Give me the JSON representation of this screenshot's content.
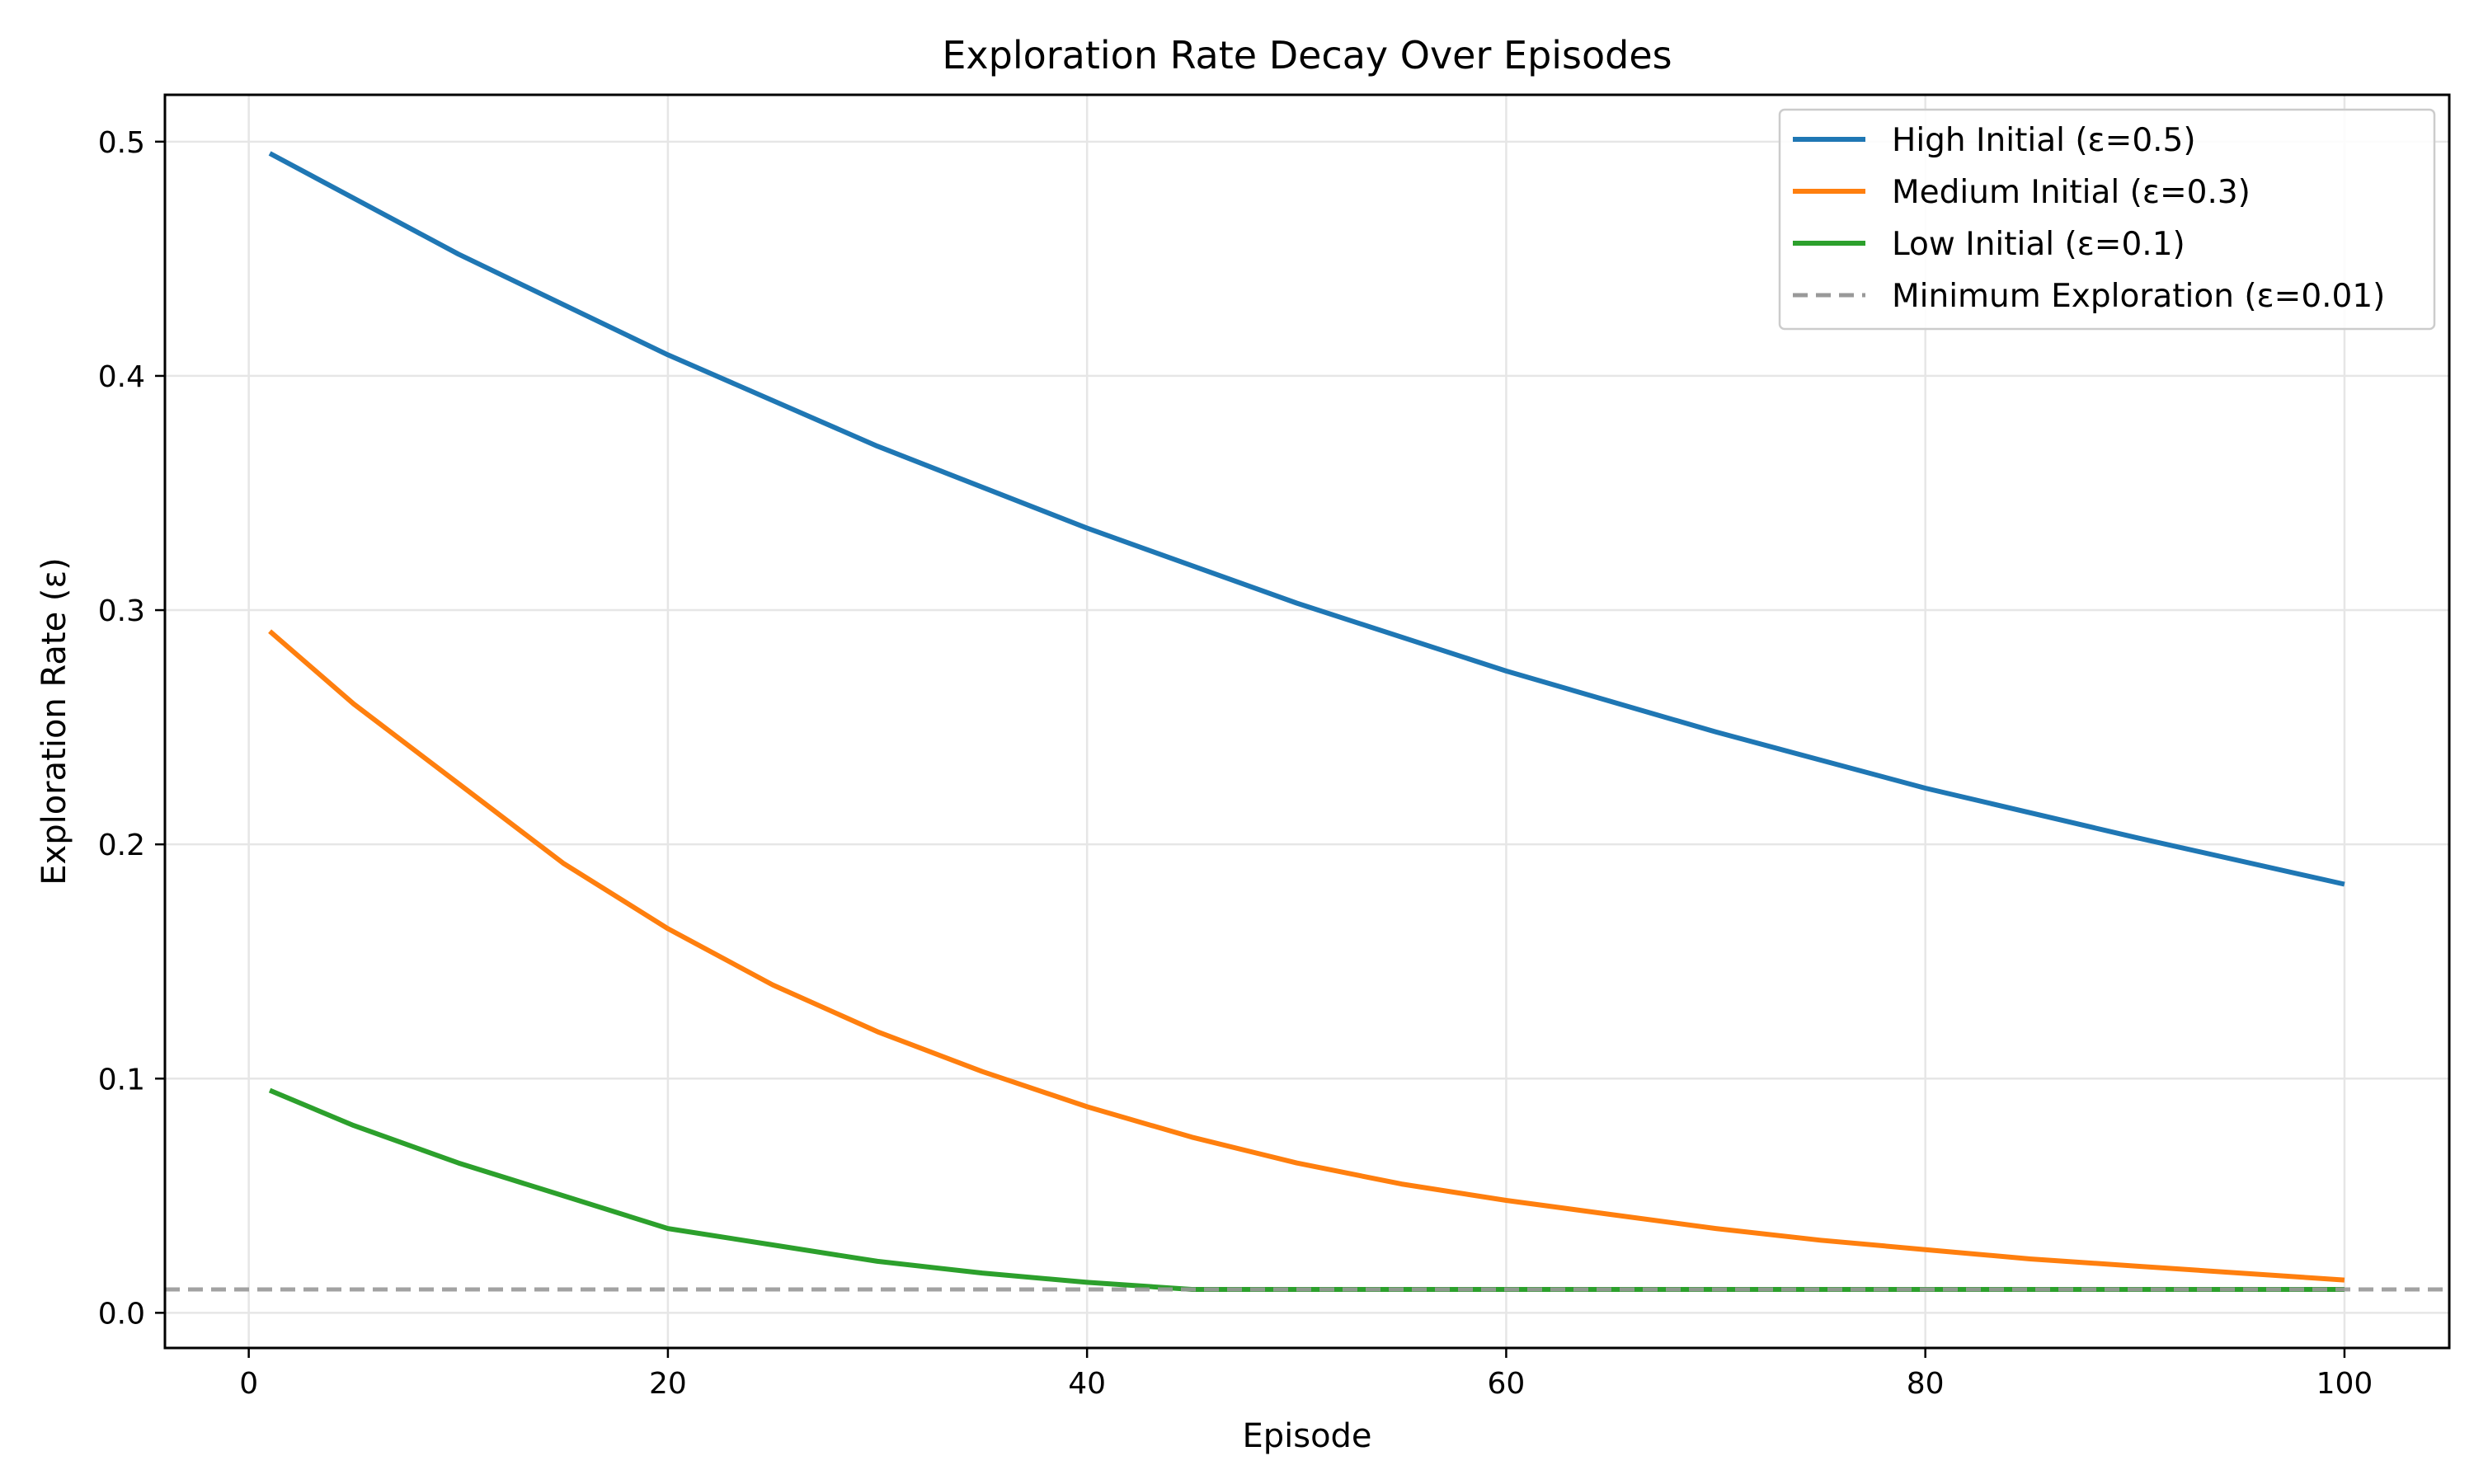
{
  "chart_data": {
    "type": "line",
    "title": "Exploration Rate Decay Over Episodes",
    "xlabel": "Episode",
    "ylabel": "Exploration Rate (ε)",
    "xlim": [
      -4,
      105
    ],
    "ylim": [
      -0.015,
      0.52
    ],
    "xticks": [
      0,
      20,
      40,
      60,
      80,
      100
    ],
    "yticks": [
      0.0,
      0.1,
      0.2,
      0.3,
      0.4,
      0.5
    ],
    "xtick_labels": [
      "0",
      "20",
      "40",
      "60",
      "80",
      "100"
    ],
    "ytick_labels": [
      "0.0",
      "0.1",
      "0.2",
      "0.3",
      "0.4",
      "0.5"
    ],
    "grid": true,
    "legend_position": "top-right",
    "series": [
      {
        "name": "High Initial (ε=0.5)",
        "color": "#1f77b4",
        "style": "solid",
        "points": [
          [
            1,
            0.495
          ],
          [
            10,
            0.452
          ],
          [
            20,
            0.409
          ],
          [
            30,
            0.37
          ],
          [
            40,
            0.335
          ],
          [
            50,
            0.303
          ],
          [
            60,
            0.274
          ],
          [
            70,
            0.248
          ],
          [
            80,
            0.224
          ],
          [
            90,
            0.203
          ],
          [
            100,
            0.183
          ]
        ]
      },
      {
        "name": "Medium Initial (ε=0.3)",
        "color": "#ff7f0e",
        "style": "solid",
        "points": [
          [
            1,
            0.291
          ],
          [
            5,
            0.26
          ],
          [
            10,
            0.226
          ],
          [
            15,
            0.192
          ],
          [
            20,
            0.164
          ],
          [
            25,
            0.14
          ],
          [
            30,
            0.12
          ],
          [
            35,
            0.103
          ],
          [
            40,
            0.088
          ],
          [
            45,
            0.075
          ],
          [
            50,
            0.064
          ],
          [
            55,
            0.055
          ],
          [
            60,
            0.048
          ],
          [
            65,
            0.042
          ],
          [
            70,
            0.036
          ],
          [
            75,
            0.031
          ],
          [
            80,
            0.027
          ],
          [
            85,
            0.023
          ],
          [
            90,
            0.02
          ],
          [
            95,
            0.017
          ],
          [
            100,
            0.014
          ]
        ]
      },
      {
        "name": "Low Initial (ε=0.1)",
        "color": "#2ca02c",
        "style": "solid",
        "points": [
          [
            1,
            0.095
          ],
          [
            5,
            0.08
          ],
          [
            10,
            0.064
          ],
          [
            15,
            0.05
          ],
          [
            20,
            0.036
          ],
          [
            25,
            0.029
          ],
          [
            30,
            0.022
          ],
          [
            35,
            0.017
          ],
          [
            40,
            0.013
          ],
          [
            45,
            0.01
          ],
          [
            50,
            0.01
          ],
          [
            60,
            0.01
          ],
          [
            70,
            0.01
          ],
          [
            80,
            0.01
          ],
          [
            90,
            0.01
          ],
          [
            100,
            0.01
          ]
        ]
      },
      {
        "name": "Minimum Exploration (ε=0.01)",
        "color": "#999999",
        "style": "dashed",
        "y": 0.01
      }
    ]
  }
}
